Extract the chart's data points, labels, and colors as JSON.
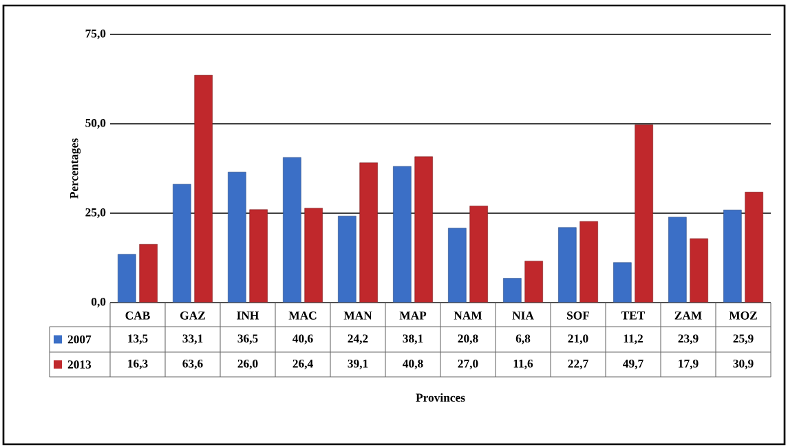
{
  "chart_data": {
    "type": "bar",
    "annotations": [
      "Provinces"
    ],
    "ylabel": "Percentages",
    "categories": [
      "CAB",
      "GAZ",
      "INH",
      "MAC",
      "MAN",
      "MAP",
      "NAM",
      "NIA",
      "SOF",
      "TET",
      "ZAM",
      "MOZ"
    ],
    "series": [
      {
        "name": "2007",
        "color": "#3b6fc6",
        "values": [
          13.5,
          33.1,
          36.5,
          40.6,
          24.2,
          38.1,
          20.8,
          6.8,
          21.0,
          11.2,
          23.9,
          25.9
        ],
        "value_labels": [
          "13,5",
          "33,1",
          "36,5",
          "40,6",
          "24,2",
          "38,1",
          "20,8",
          "6,8",
          "21,0",
          "11,2",
          "23,9",
          "25,9"
        ]
      },
      {
        "name": "2013",
        "color": "#c0282c",
        "values": [
          16.3,
          63.6,
          26.0,
          26.4,
          39.1,
          40.8,
          27.0,
          11.6,
          22.7,
          49.7,
          17.9,
          30.9
        ],
        "value_labels": [
          "16,3",
          "63,6",
          "26,0",
          "26,4",
          "39,1",
          "40,8",
          "27,0",
          "11,6",
          "22,7",
          "49,7",
          "17,9",
          "30,9"
        ]
      }
    ],
    "ylim": [
      0,
      75
    ],
    "yticks": [
      {
        "value": 0,
        "label": "0,0"
      },
      {
        "value": 25,
        "label": "25,0"
      },
      {
        "value": 50,
        "label": "50,0"
      },
      {
        "value": 75,
        "label": "75,0"
      }
    ],
    "grid": "y",
    "legend": "bottom left"
  }
}
